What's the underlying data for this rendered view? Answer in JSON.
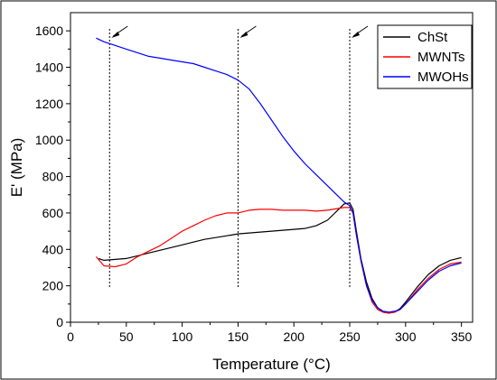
{
  "chart_data": {
    "type": "line",
    "xlabel": "Temperature (°C)",
    "ylabel": "E' (MPa)",
    "xlim": [
      0,
      360
    ],
    "ylim": [
      0,
      1700
    ],
    "xticks": [
      0,
      50,
      100,
      150,
      200,
      250,
      300,
      350
    ],
    "yticks": [
      0,
      200,
      400,
      600,
      800,
      1000,
      1200,
      1400,
      1600
    ],
    "xtick_labels": [
      "0",
      "50",
      "100",
      "150",
      "200",
      "250",
      "300",
      "350"
    ],
    "ytick_labels": [
      "0",
      "200",
      "400",
      "600",
      "800",
      "1000",
      "1200",
      "1400",
      "1600"
    ],
    "grid": false,
    "legend_position": "top-right",
    "vertical_markers": [
      35,
      150,
      250
    ],
    "series": [
      {
        "name": "ChSt",
        "color": "#000000",
        "x": [
          25,
          30,
          40,
          50,
          60,
          70,
          80,
          90,
          100,
          110,
          120,
          130,
          140,
          150,
          160,
          170,
          180,
          190,
          200,
          210,
          220,
          230,
          235,
          240,
          245,
          250,
          253,
          256,
          260,
          265,
          270,
          275,
          280,
          285,
          290,
          295,
          300,
          310,
          320,
          330,
          340,
          350
        ],
        "y": [
          350,
          340,
          345,
          350,
          365,
          380,
          395,
          410,
          425,
          440,
          455,
          465,
          475,
          485,
          490,
          495,
          500,
          505,
          510,
          515,
          530,
          560,
          590,
          620,
          650,
          655,
          620,
          500,
          350,
          220,
          130,
          80,
          55,
          50,
          55,
          75,
          110,
          190,
          260,
          310,
          340,
          355
        ]
      },
      {
        "name": "MWNTs",
        "color": "#ff0000",
        "x": [
          23,
          30,
          40,
          50,
          60,
          70,
          80,
          90,
          100,
          110,
          120,
          130,
          140,
          150,
          160,
          170,
          180,
          190,
          200,
          210,
          220,
          230,
          240,
          245,
          250,
          253,
          256,
          260,
          265,
          270,
          275,
          280,
          285,
          290,
          295,
          300,
          310,
          320,
          330,
          340,
          350
        ],
        "y": [
          360,
          310,
          305,
          320,
          360,
          390,
          420,
          460,
          500,
          530,
          560,
          585,
          600,
          600,
          615,
          620,
          620,
          615,
          615,
          615,
          610,
          615,
          625,
          630,
          630,
          600,
          480,
          340,
          200,
          110,
          70,
          55,
          50,
          55,
          70,
          100,
          175,
          240,
          290,
          320,
          330
        ]
      },
      {
        "name": "MWOHs",
        "color": "#0000ff",
        "x": [
          23,
          30,
          40,
          50,
          60,
          70,
          80,
          90,
          100,
          110,
          120,
          130,
          140,
          150,
          160,
          170,
          180,
          190,
          200,
          210,
          220,
          230,
          240,
          245,
          250,
          253,
          256,
          260,
          265,
          270,
          275,
          280,
          285,
          290,
          295,
          300,
          310,
          320,
          330,
          340,
          350
        ],
        "y": [
          1560,
          1540,
          1520,
          1500,
          1480,
          1460,
          1450,
          1440,
          1430,
          1420,
          1400,
          1380,
          1360,
          1330,
          1280,
          1200,
          1110,
          1020,
          940,
          870,
          810,
          750,
          690,
          660,
          640,
          600,
          480,
          340,
          200,
          120,
          80,
          60,
          55,
          60,
          70,
          100,
          165,
          230,
          280,
          310,
          325
        ]
      }
    ]
  }
}
